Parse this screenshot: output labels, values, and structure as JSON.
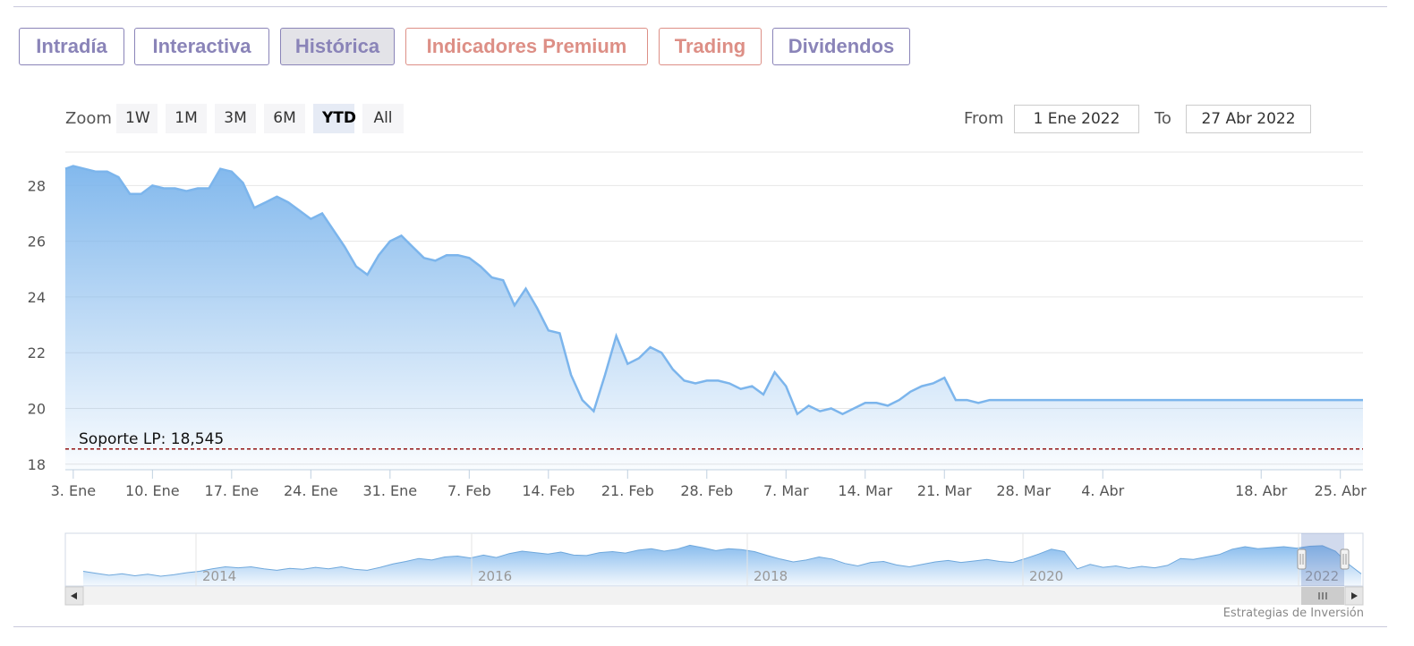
{
  "tabs": [
    {
      "label": "Intradía",
      "style": "violet",
      "active": false
    },
    {
      "label": "Interactiva",
      "style": "violet",
      "active": false
    },
    {
      "label": "Histórica",
      "style": "violet",
      "active": true
    },
    {
      "label": "Indicadores Premium",
      "style": "pink",
      "active": false
    },
    {
      "label": "Trading",
      "style": "pink",
      "active": false
    },
    {
      "label": "Dividendos",
      "style": "violet",
      "active": false
    }
  ],
  "zoom": {
    "label": "Zoom",
    "buttons": [
      "1W",
      "1M",
      "3M",
      "6M",
      "YTD",
      "All"
    ],
    "selected": "YTD"
  },
  "range": {
    "from_label": "From",
    "from_value": "1 Ene 2022",
    "to_label": "To",
    "to_value": "27 Abr 2022"
  },
  "credit": "Estrategias de Inversión",
  "colors": {
    "line": "#7cb5ec",
    "support": "#8b0000",
    "tab_violet": "#8a84b8",
    "tab_pink": "#dd8f86"
  },
  "chart_data": {
    "type": "area",
    "title": "",
    "xlabel": "",
    "ylabel": "",
    "ylim": [
      17.8,
      29.2
    ],
    "yticks": [
      18,
      20,
      22,
      24,
      26,
      28
    ],
    "grid": true,
    "xticks": [
      {
        "day": 3,
        "label": "3. Ene"
      },
      {
        "day": 10,
        "label": "10. Ene"
      },
      {
        "day": 17,
        "label": "17. Ene"
      },
      {
        "day": 24,
        "label": "24. Ene"
      },
      {
        "day": 31,
        "label": "31. Ene"
      },
      {
        "day": 38,
        "label": "7. Feb"
      },
      {
        "day": 45,
        "label": "14. Feb"
      },
      {
        "day": 52,
        "label": "21. Feb"
      },
      {
        "day": 59,
        "label": "28. Feb"
      },
      {
        "day": 66,
        "label": "7. Mar"
      },
      {
        "day": 73,
        "label": "14. Mar"
      },
      {
        "day": 80,
        "label": "21. Mar"
      },
      {
        "day": 87,
        "label": "28. Mar"
      },
      {
        "day": 94,
        "label": "4. Abr"
      },
      {
        "day": 108,
        "label": "18. Abr"
      },
      {
        "day": 115,
        "label": "25. Abr"
      }
    ],
    "x_start_day": 2.3,
    "x_end_day": 117,
    "series": [
      {
        "x": [
          2.3,
          3,
          4,
          5,
          6,
          7,
          8,
          9,
          10,
          11,
          12,
          13,
          14,
          15,
          16,
          17,
          18,
          19,
          20,
          21,
          22,
          23,
          24,
          25,
          26,
          27,
          28,
          29,
          30,
          31,
          32,
          33,
          34,
          35,
          36,
          37,
          38,
          39,
          40,
          41,
          42,
          43,
          44,
          45,
          46,
          47,
          48,
          49,
          50,
          51,
          52,
          53,
          54,
          55,
          56,
          57,
          58,
          59,
          60,
          61,
          62,
          63,
          64,
          65,
          66,
          67,
          68,
          69,
          70,
          71,
          72,
          73,
          74,
          75,
          76,
          77,
          78,
          79,
          80,
          81,
          82,
          83,
          84,
          85,
          86,
          87,
          88,
          89,
          90,
          91,
          92,
          93,
          94,
          95,
          96,
          97,
          98,
          99,
          100,
          101,
          102,
          103,
          104,
          105,
          106,
          107,
          108,
          109,
          110,
          111,
          112,
          113,
          114,
          115,
          116,
          117
        ],
        "values": [
          28.6,
          28.7,
          28.6,
          28.5,
          28.5,
          28.3,
          27.7,
          27.7,
          28.0,
          27.9,
          27.9,
          27.8,
          27.9,
          27.9,
          28.6,
          28.5,
          28.1,
          27.2,
          27.4,
          27.6,
          27.4,
          27.1,
          26.8,
          27.0,
          26.4,
          25.8,
          25.1,
          24.8,
          25.5,
          26.0,
          26.2,
          25.8,
          25.4,
          25.3,
          25.5,
          25.5,
          25.4,
          25.1,
          24.7,
          24.6,
          23.7,
          24.3,
          23.6,
          22.8,
          22.7,
          21.2,
          20.3,
          19.9,
          21.2,
          22.6,
          21.6,
          21.8,
          22.2,
          22.0,
          21.4,
          21.0,
          20.9,
          21.0,
          21.0,
          20.9,
          20.7,
          20.8,
          20.5,
          21.3,
          20.8,
          19.8,
          20.1,
          19.9,
          20.0,
          19.8,
          20.0,
          20.2,
          20.2,
          20.1,
          20.3,
          20.6,
          20.8,
          20.9,
          21.1,
          20.3,
          20.3,
          20.2,
          20.3,
          20.3,
          20.3,
          20.3,
          20.3,
          20.3,
          20.3,
          20.3,
          20.3,
          20.3,
          20.3,
          20.3,
          20.3,
          20.3,
          20.3,
          20.3,
          20.3,
          20.3,
          20.3,
          20.3,
          20.3,
          20.3,
          20.3,
          20.3,
          20.3,
          20.3,
          20.3,
          20.3,
          20.3,
          20.3,
          20.3,
          20.3,
          20.3,
          20.3
        ]
      }
    ],
    "support_line": {
      "value": 18.545,
      "label": "Soporte LP: 18,545"
    },
    "navigator": {
      "xticks": [
        "2014",
        "2016",
        "2018",
        "2020",
        "2022"
      ],
      "values": [
        21,
        20.6,
        20.2,
        20.5,
        20.1,
        20.4,
        20.0,
        20.3,
        20.7,
        21.0,
        21.5,
        21.9,
        21.7,
        21.9,
        21.5,
        21.2,
        21.6,
        21.4,
        21.8,
        21.5,
        21.9,
        21.4,
        21.2,
        21.8,
        22.5,
        23.0,
        23.6,
        23.3,
        23.9,
        24.1,
        23.7,
        24.3,
        23.8,
        24.6,
        25.1,
        24.8,
        24.5,
        24.9,
        24.3,
        24.2,
        24.8,
        25.0,
        24.7,
        25.3,
        25.6,
        25.1,
        25.5,
        26.3,
        25.8,
        25.2,
        25.6,
        25.4,
        25.0,
        24.2,
        23.5,
        22.9,
        23.3,
        23.9,
        23.5,
        22.6,
        22.1,
        22.8,
        23.0,
        22.3,
        21.9,
        22.4,
        22.9,
        23.2,
        22.8,
        23.1,
        23.4,
        23.0,
        22.8,
        23.6,
        24.5,
        25.5,
        25.0,
        21.5,
        22.4,
        21.8,
        22.1,
        21.6,
        22.0,
        21.7,
        22.2,
        23.6,
        23.4,
        23.9,
        24.4,
        25.5,
        26.0,
        25.6,
        25.8,
        26.0,
        25.7,
        26.1,
        26.2,
        25.1,
        22.5,
        20.5
      ],
      "ylim": [
        18,
        28
      ],
      "selected_from_label": "1 Ene 2022",
      "selected_to_label": "27 Abr 2022"
    }
  }
}
